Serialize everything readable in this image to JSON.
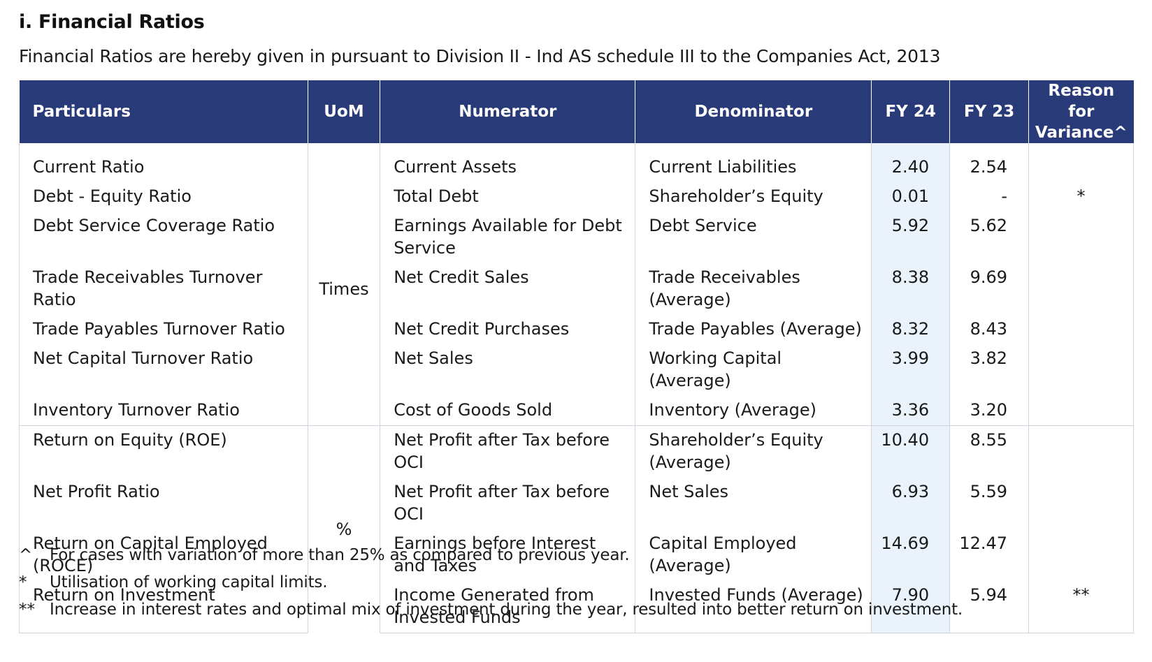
{
  "title": "i. Financial Ratios",
  "subtitle": "Financial Ratios are hereby given in pursuant to Division II - Ind AS schedule III to the Companies Act, 2013",
  "columns": {
    "particulars": "Particulars",
    "uom": "UoM",
    "numerator": "Numerator",
    "denominator": "Denominator",
    "fy24": "FY 24",
    "fy23": "FY 23",
    "reason_line1": "Reason for",
    "reason_line2": "Variance^"
  },
  "groups": [
    {
      "uom": "Times",
      "rows": [
        {
          "particular": "Current Ratio",
          "numerator": "Current Assets",
          "denominator": "Current Liabilities",
          "fy24": "2.40",
          "fy23": "2.54",
          "reason": ""
        },
        {
          "particular": "Debt - Equity Ratio",
          "numerator": "Total Debt",
          "denominator": "Shareholder’s Equity",
          "fy24": "0.01",
          "fy23": "-",
          "reason": "*"
        },
        {
          "particular": "Debt Service Coverage Ratio",
          "numerator": "Earnings Available for Debt Service",
          "denominator": "Debt Service",
          "fy24": "5.92",
          "fy23": "5.62",
          "reason": ""
        },
        {
          "particular": "Trade Receivables Turnover Ratio",
          "numerator": "Net Credit Sales",
          "denominator": "Trade Receivables (Average)",
          "fy24": "8.38",
          "fy23": "9.69",
          "reason": ""
        },
        {
          "particular": "Trade Payables Turnover Ratio",
          "numerator": "Net Credit Purchases",
          "denominator": "Trade Payables (Average)",
          "fy24": "8.32",
          "fy23": "8.43",
          "reason": ""
        },
        {
          "particular": "Net Capital Turnover Ratio",
          "numerator": "Net Sales",
          "denominator": "Working Capital (Average)",
          "fy24": "3.99",
          "fy23": "3.82",
          "reason": ""
        },
        {
          "particular": "Inventory Turnover Ratio",
          "numerator": "Cost of Goods Sold",
          "denominator": "Inventory (Average)",
          "fy24": "3.36",
          "fy23": "3.20",
          "reason": ""
        }
      ]
    },
    {
      "uom": "%",
      "rows": [
        {
          "particular": "Return on Equity (ROE)",
          "numerator": "Net Profit after Tax before OCI",
          "denominator": "Shareholder’s Equity (Average)",
          "fy24": "10.40",
          "fy23": "8.55",
          "reason": ""
        },
        {
          "particular": "Net Profit Ratio",
          "numerator": "Net Profit after Tax before OCI",
          "denominator": "Net Sales",
          "fy24": "6.93",
          "fy23": "5.59",
          "reason": ""
        },
        {
          "particular": "Return on Capital Employed (ROCE)",
          "numerator": "Earnings before Interest and Taxes",
          "denominator": "Capital Employed (Average)",
          "fy24": "14.69",
          "fy23": "12.47",
          "reason": ""
        },
        {
          "particular": "Return on Investment",
          "numerator": "Income Generated from Invested Funds",
          "denominator": "Invested Funds (Average)",
          "fy24": "7.90",
          "fy23": "5.94",
          "reason": "**"
        }
      ]
    }
  ],
  "footnotes": [
    {
      "mark": "^",
      "text": "For cases with variation of more than 25% as compared to previous year."
    },
    {
      "mark": "*",
      "text": "Utilisation of working capital limits."
    },
    {
      "mark": "**",
      "text": "Increase in interest rates and optimal mix of investment during the year, resulted into better return on investment."
    }
  ],
  "colors": {
    "header_bg": "#283a78",
    "fy24_highlight": "#eaf2fb",
    "grid_line": "#cfd3dd"
  }
}
